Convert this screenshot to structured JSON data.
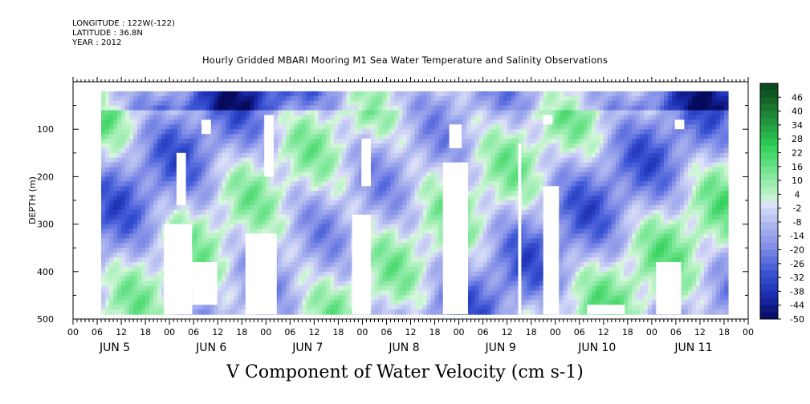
{
  "meta": {
    "longitude": "LONGITUDE : 122W(-122)",
    "latitude": "LATITUDE : 36.8N",
    "year": "YEAR : 2012"
  },
  "title": "Hourly Gridded MBARI Mooring M1 Sea Water Temperature and Salinity Observations",
  "bottom_label": "V Component of Water Velocity (cm s-1)",
  "chart_data": {
    "type": "heatmap",
    "title": "Hourly Gridded MBARI Mooring M1 Sea Water Temperature and Salinity Observations",
    "xlabel": "",
    "ylabel": "DEPTH (m)",
    "ylim": [
      500,
      0
    ],
    "yticks": [
      100,
      200,
      300,
      400,
      500
    ],
    "hour_ticks": [
      "00",
      "06",
      "12",
      "18",
      "00",
      "06",
      "12",
      "18",
      "00",
      "06",
      "12",
      "18",
      "00",
      "06",
      "12",
      "18",
      "00",
      "06",
      "12",
      "18",
      "00",
      "06",
      "12",
      "18",
      "00",
      "06",
      "12",
      "18",
      "00"
    ],
    "day_labels": [
      "JUN 5",
      "JUN 6",
      "JUN 7",
      "JUN 8",
      "JUN 9",
      "JUN 10",
      "JUN 11"
    ],
    "colorbar": {
      "levels": [
        46,
        40,
        34,
        28,
        22,
        16,
        10,
        4,
        -2,
        -8,
        -14,
        -20,
        -26,
        -32,
        -38,
        -44,
        -50
      ],
      "range": [
        -50,
        52
      ],
      "colors_high": [
        "#0b4a1c",
        "#1f8a3a",
        "#2ecf56",
        "#7fe89a",
        "#d8f7dd"
      ],
      "colors_low": [
        "#dfe3f8",
        "#aab3ee",
        "#7b88e6",
        "#3a54d4",
        "#1a2bb0",
        "#060a5c"
      ]
    },
    "data_start_hour": 7,
    "data_end_hour": 163
  }
}
